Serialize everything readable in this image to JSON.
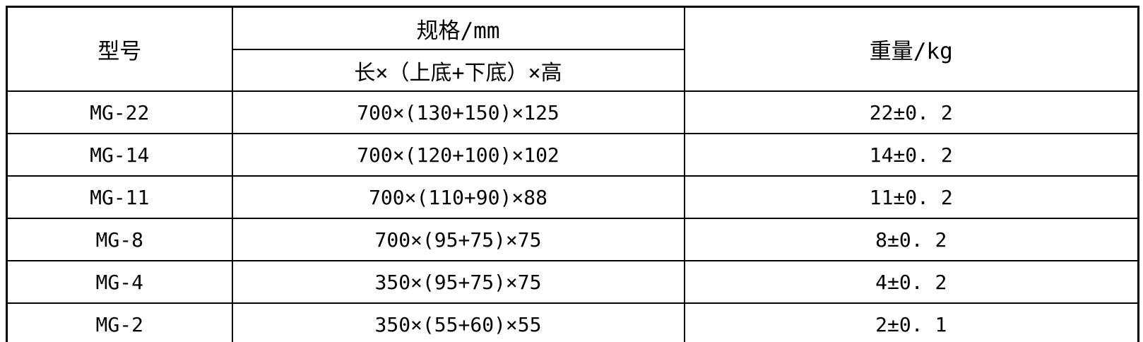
{
  "table": {
    "header": {
      "model": "型号",
      "spec": "规格/mm",
      "spec_sub": "长×（上底+下底）×高",
      "weight": "重量/kg"
    },
    "rows": [
      {
        "model": "MG-22",
        "spec": "700×(130+150)×125",
        "weight": "22±0. 2"
      },
      {
        "model": "MG-14",
        "spec": "700×(120+100)×102",
        "weight": "14±0. 2"
      },
      {
        "model": "MG-11",
        "spec": "700×(110+90)×88",
        "weight": "11±0. 2"
      },
      {
        "model": "MG-8",
        "spec": "700×(95+75)×75",
        "weight": "8±0. 2"
      },
      {
        "model": "MG-4",
        "spec": "350×(95+75)×75",
        "weight": "4±0. 2"
      },
      {
        "model": "MG-2",
        "spec": "350×(55+60)×55",
        "weight": "2±0. 1"
      }
    ],
    "colors": {
      "border": "#000000",
      "text": "#000000",
      "background": "#ffffff"
    }
  }
}
